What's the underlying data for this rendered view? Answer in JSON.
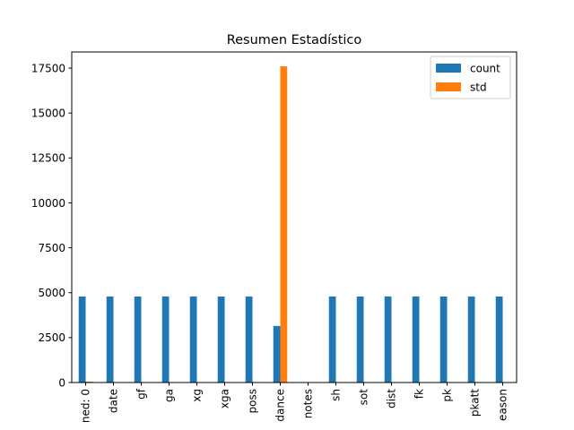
{
  "chart_data": {
    "type": "bar",
    "title": "Resumen Estadístico",
    "xlabel": "",
    "ylabel": "",
    "categories": [
      "ned: 0",
      "date",
      "gf",
      "ga",
      "xg",
      "xga",
      "poss",
      "dance",
      "notes",
      "sh",
      "sot",
      "dist",
      "fk",
      "pk",
      "pkatt",
      "eason"
    ],
    "series": [
      {
        "name": "count",
        "color": "#1f77b4",
        "values": [
          4788,
          4788,
          4788,
          4788,
          4788,
          4788,
          4788,
          3150,
          0,
          4788,
          4788,
          4788,
          4788,
          4788,
          4788,
          4788
        ]
      },
      {
        "name": "std",
        "color": "#ff7f0e",
        "values": [
          50,
          0,
          1.3,
          1.3,
          0.8,
          0.8,
          10.5,
          17600,
          0,
          5.5,
          2.5,
          1.5,
          0.6,
          0.4,
          0.5,
          1.0
        ]
      }
    ],
    "ylim": [
      0,
      18400
    ],
    "yticks": [
      0,
      2500,
      5000,
      7500,
      10000,
      12500,
      15000,
      17500
    ],
    "ytick_labels": [
      "0",
      "2500",
      "5000",
      "7500",
      "10000",
      "12500",
      "15000",
      "17500"
    ],
    "legend_position": "top-right",
    "grid": false
  }
}
